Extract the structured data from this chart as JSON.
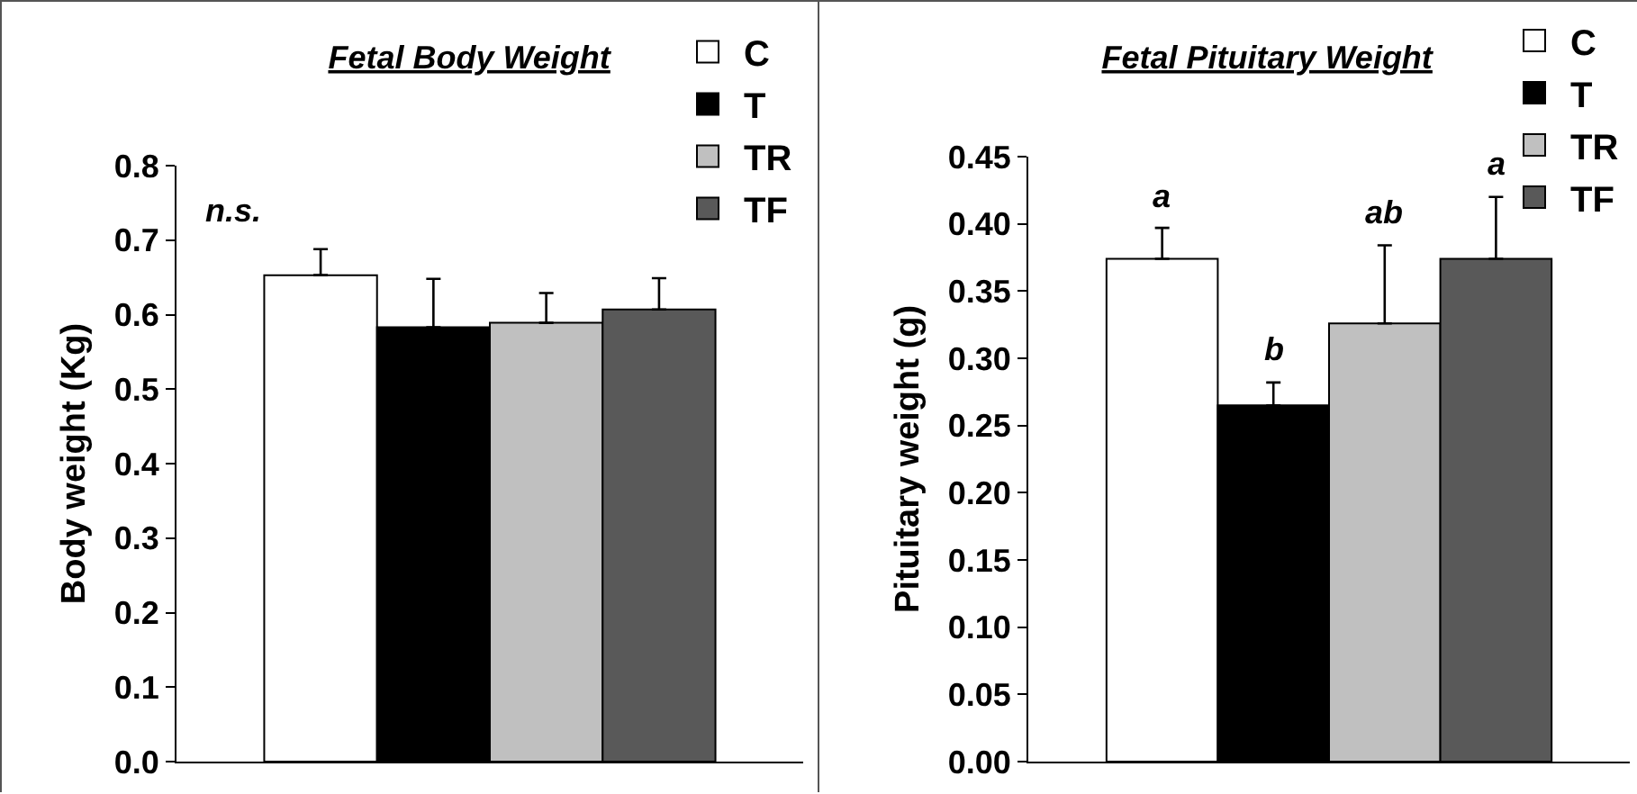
{
  "chart_data": [
    {
      "type": "bar",
      "title": "Fetal Body Weight",
      "ylabel": "Body weight (Kg)",
      "categories": [
        null
      ],
      "series": [
        {
          "name": "C",
          "color": "#ffffff",
          "values": [
            0.653
          ],
          "errors": [
            [
              0.653,
              0.688
            ]
          ]
        },
        {
          "name": "T",
          "color": "#000000",
          "values": [
            0.583
          ],
          "errors": [
            [
              0.583,
              0.648
            ]
          ]
        },
        {
          "name": "TR",
          "color": "#c0c0c0",
          "values": [
            0.589
          ],
          "errors": [
            [
              0.589,
              0.629
            ]
          ]
        },
        {
          "name": "TF",
          "color": "#595959",
          "values": [
            0.607
          ],
          "errors": [
            [
              0.607,
              0.649
            ]
          ]
        }
      ],
      "ylim": [
        0,
        0.8
      ],
      "yticks": [
        {
          "value": 0,
          "label": "0.0"
        },
        0.1,
        0.2,
        0.3,
        0.4,
        0.5,
        0.6,
        0.7,
        0.8
      ],
      "legend": "top right",
      "annotations": [
        "n.s."
      ]
    },
    {
      "type": "bar",
      "title": "Fetal Pituitary Weight",
      "ylabel": "Pituitary weight (g)",
      "categories": [
        null
      ],
      "series": [
        {
          "name": "C",
          "color": "#ffffff",
          "values": [
            0.374
          ],
          "errors": [
            [
              0.374,
              0.397
            ]
          ]
        },
        {
          "name": "T",
          "color": "#000000",
          "values": [
            0.265
          ],
          "errors": [
            [
              0.265,
              0.282
            ]
          ]
        },
        {
          "name": "TR",
          "color": "#c0c0c0",
          "values": [
            0.326
          ],
          "errors": [
            [
              0.326,
              0.384
            ]
          ]
        },
        {
          "name": "TF",
          "color": "#595959",
          "values": [
            0.374
          ],
          "errors": [
            [
              0.374,
              0.42
            ]
          ]
        }
      ],
      "ylim": [
        0,
        0.45
      ],
      "yticks": [
        {
          "value": 0,
          "label": "0.00"
        },
        {
          "value": 0.05,
          "label": "0.05"
        },
        {
          "value": 0.1,
          "label": "0.10"
        },
        {
          "value": 0.15,
          "label": "0.15"
        },
        {
          "value": 0.2,
          "label": "0.20"
        },
        {
          "value": 0.25,
          "label": "0.25"
        },
        {
          "value": 0.3,
          "label": "0.30"
        },
        {
          "value": 0.35,
          "label": "0.35"
        },
        {
          "value": 0.4,
          "label": "0.40"
        },
        {
          "value": 0.45,
          "label": "0.45"
        }
      ],
      "legend": "top right",
      "annotations": [
        "a",
        "b",
        "ab",
        "a"
      ]
    }
  ]
}
